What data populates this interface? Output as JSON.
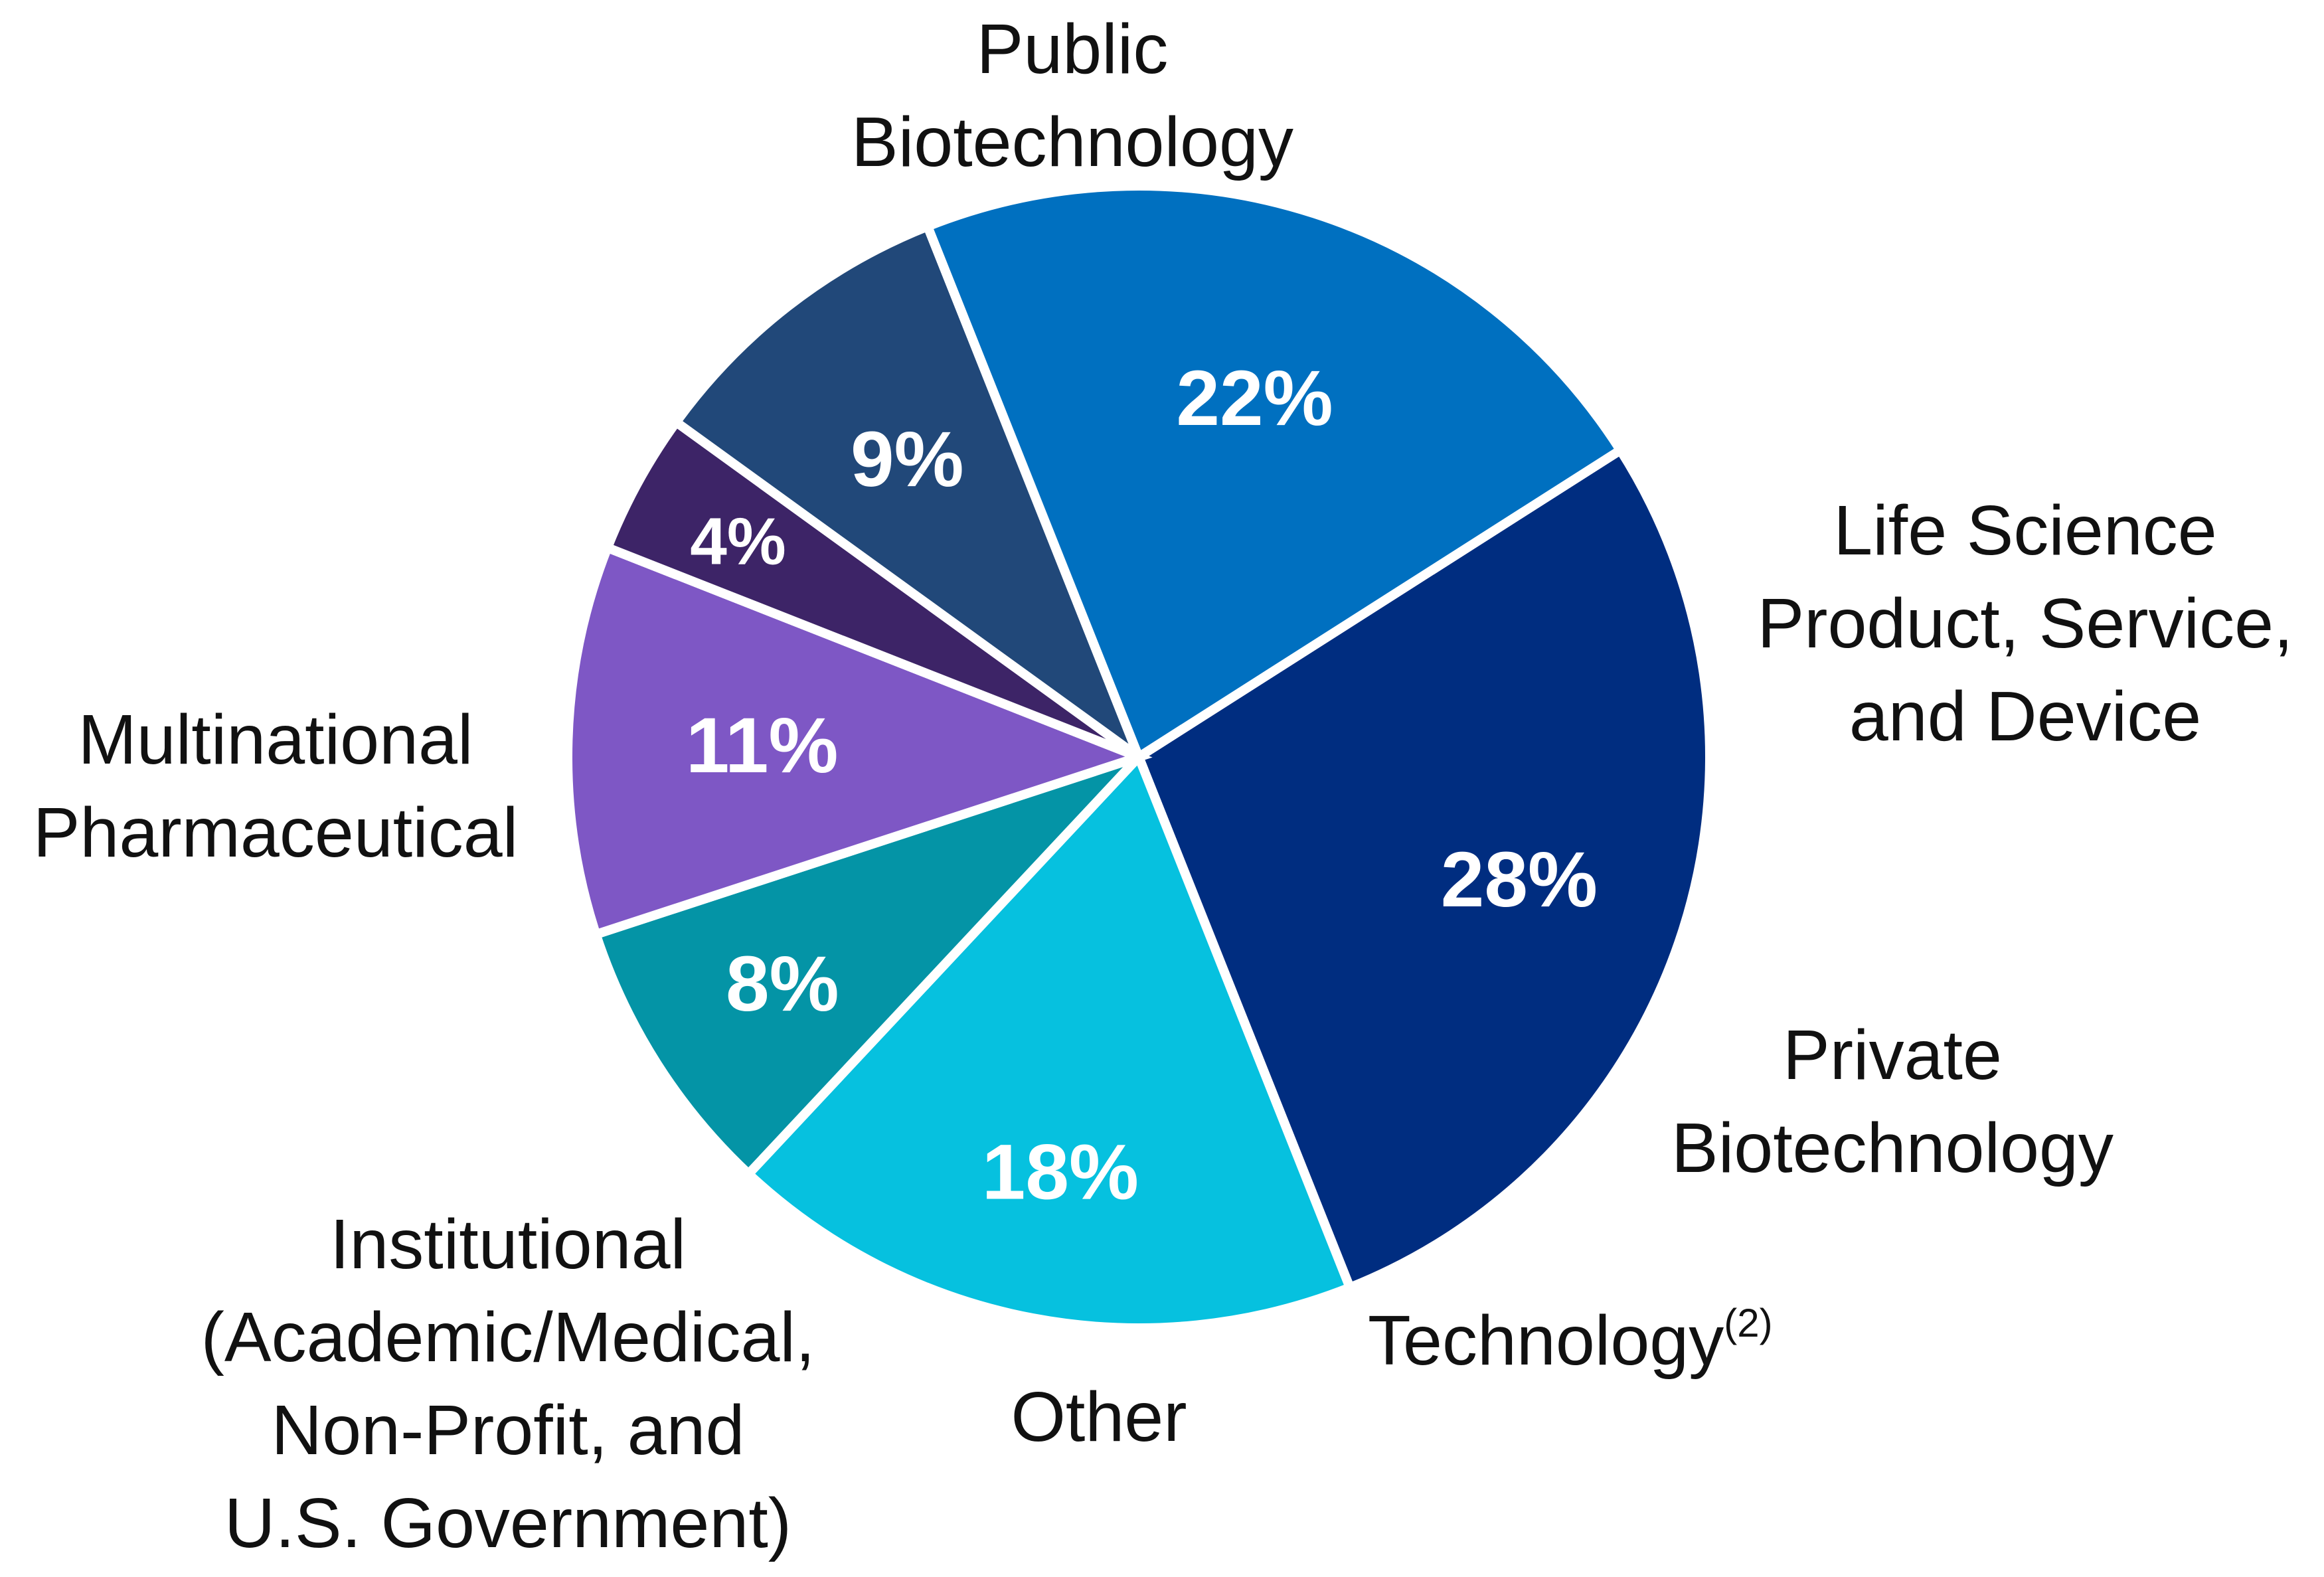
{
  "chart_data": {
    "type": "pie",
    "title": "",
    "slices": [
      {
        "name": "Public Biotechnology",
        "label_lines": [
          "Public",
          "Biotechnology"
        ],
        "value": 28,
        "value_label": "28%",
        "color": "#002D80"
      },
      {
        "name": "Life Science Product, Service, and Device",
        "label_lines": [
          "Life Science",
          "Product, Service,",
          "and Device"
        ],
        "value": 18,
        "value_label": "18%",
        "color": "#06C1DF"
      },
      {
        "name": "Private Biotechnology",
        "label_lines": [
          "Private",
          "Biotechnology"
        ],
        "value": 8,
        "value_label": "8%",
        "color": "#0494A6"
      },
      {
        "name": "Technology",
        "label_lines": [
          "Technology"
        ],
        "label_superscript": "(2)",
        "value": 11,
        "value_label": "11%",
        "color": "#7E57C5"
      },
      {
        "name": "Other",
        "label_lines": [
          "Other"
        ],
        "value": 4,
        "value_label": "4%",
        "color": "#3D2467"
      },
      {
        "name": "Institutional (Academic/Medical, Non-Profit, and U.S. Government)",
        "label_lines": [
          "Institutional",
          "(Academic/Medical,",
          "Non-Profit, and",
          "U.S. Government)"
        ],
        "value": 9,
        "value_label": "9%",
        "color": "#214879"
      },
      {
        "name": "Multinational Pharmaceutical",
        "label_lines": [
          "Multinational",
          "Pharmaceutical"
        ],
        "value": 22,
        "value_label": "22%",
        "color": "#0070C0"
      }
    ],
    "legend": "none"
  }
}
